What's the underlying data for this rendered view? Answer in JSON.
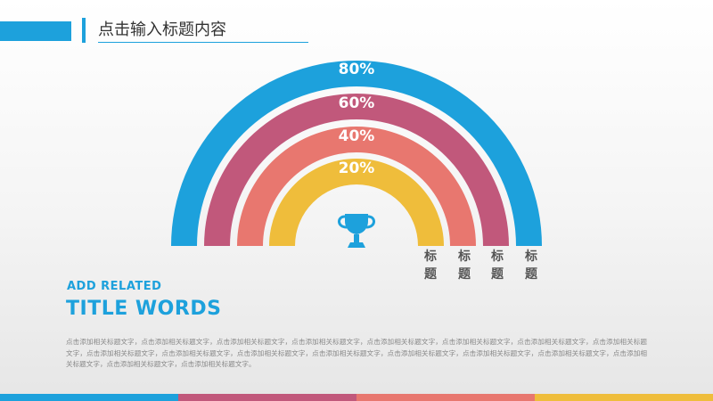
{
  "header": {
    "title": "点击输入标题内容"
  },
  "diagram": {
    "rings": [
      {
        "percent": "80%",
        "label": "标题",
        "color": "#1da1dc"
      },
      {
        "percent": "60%",
        "label": "标题",
        "color": "#c1587b"
      },
      {
        "percent": "40%",
        "label": "标题",
        "color": "#e8776f"
      },
      {
        "percent": "20%",
        "label": "标题",
        "color": "#efbd3b"
      }
    ],
    "icon": "trophy-icon",
    "icon_color": "#1da1dc"
  },
  "text_block": {
    "sub_heading": "ADD RELATED",
    "heading": "TITLE WORDS",
    "body": "点击添加相关标题文字，点击添加相关标题文字，点击添加相关标题文字，点击添加相关标题文字，点击添加相关标题文字，点击添加相关标题文字，点击添加相关标题文字，点击添加相关标题文字，点击添加相关标题文字，点击添加相关标题文字，点击添加相关标题文字，点击添加相关标题文字，点击添加相关标题文字，点击添加相关标题文字，点击添加相关标题文字，点击添加相关标题文字，点击添加相关标题文字，点击添加相关标题文字。"
  },
  "footer": {
    "strip_colors": [
      "#1da1dc",
      "#c1587b",
      "#e8776f",
      "#efbd3b"
    ]
  }
}
